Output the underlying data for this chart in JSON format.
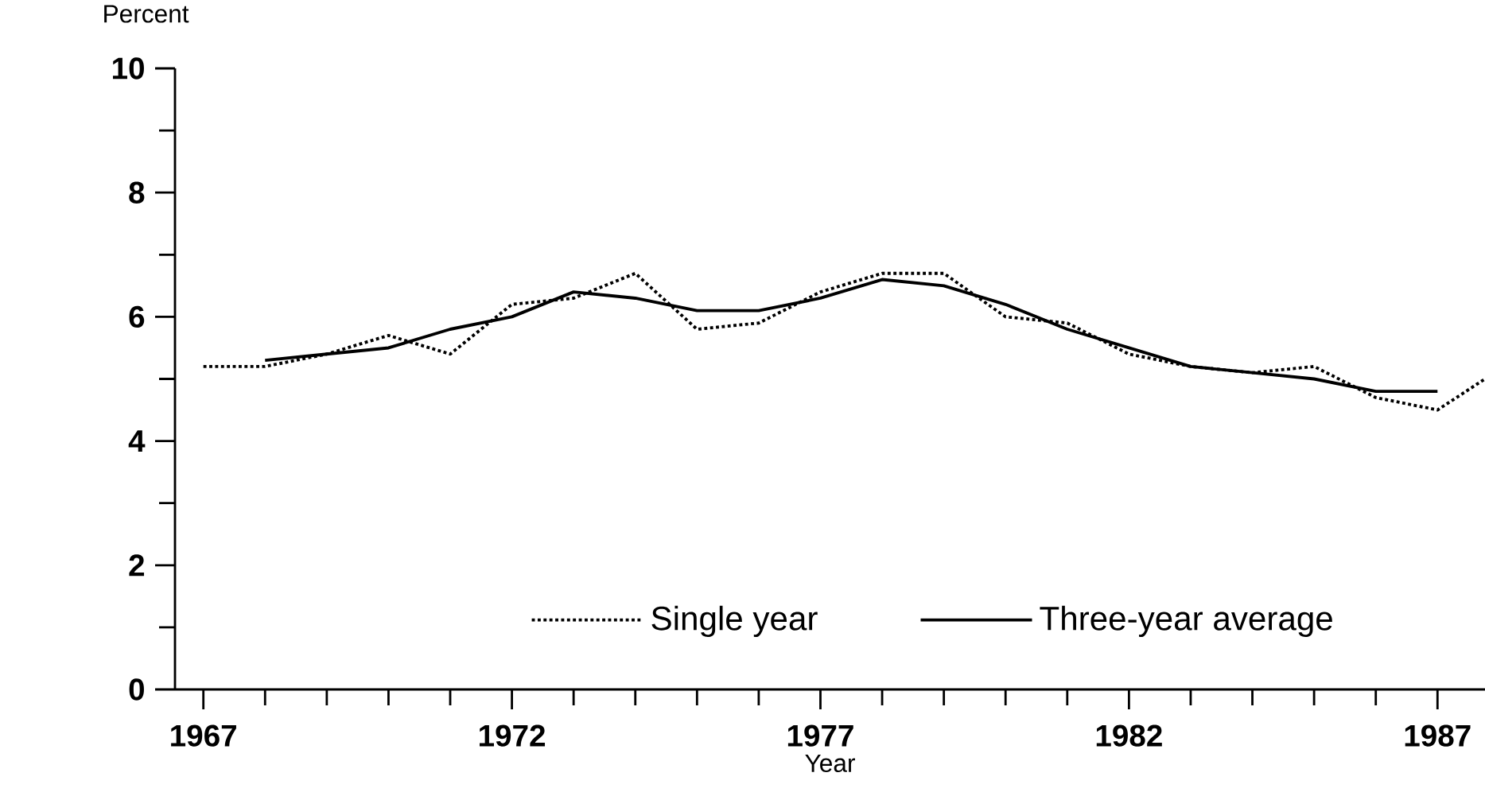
{
  "chart_data": {
    "type": "line",
    "xlabel": "Year",
    "ylabel": "Percent",
    "xlim": [
      1966.54,
      1987.77
    ],
    "ylim": [
      0,
      10
    ],
    "xticks": [
      1967,
      1972,
      1977,
      1982,
      1987
    ],
    "yticks": [
      0,
      2,
      4,
      6,
      8,
      10
    ],
    "legend": "bottom",
    "series": [
      {
        "name": "Single year",
        "color": "#000000",
        "line_style": "dotted",
        "x": [
          1967,
          1968,
          1969,
          1970,
          1971,
          1972,
          1973,
          1974,
          1975,
          1976,
          1977,
          1978,
          1979,
          1980,
          1981,
          1982,
          1983,
          1984,
          1985,
          1986,
          1987,
          1987.77
        ],
        "values": [
          5.2,
          5.2,
          5.4,
          5.7,
          5.4,
          6.2,
          6.3,
          6.7,
          5.8,
          5.9,
          6.4,
          6.7,
          6.7,
          6.0,
          5.9,
          5.4,
          5.2,
          5.1,
          5.2,
          4.7,
          4.5,
          5.0
        ]
      },
      {
        "name": "Three-year average",
        "color": "#000000",
        "line_style": "solid",
        "x": [
          1968,
          1969,
          1970,
          1971,
          1972,
          1973,
          1974,
          1975,
          1976,
          1977,
          1978,
          1979,
          1980,
          1981,
          1982,
          1983,
          1984,
          1985,
          1986,
          1987
        ],
        "values": [
          5.3,
          5.4,
          5.5,
          5.8,
          6.0,
          6.4,
          6.3,
          6.1,
          6.1,
          6.3,
          6.6,
          6.5,
          6.2,
          5.8,
          5.5,
          5.2,
          5.1,
          5.0,
          4.8,
          4.8
        ]
      }
    ]
  }
}
